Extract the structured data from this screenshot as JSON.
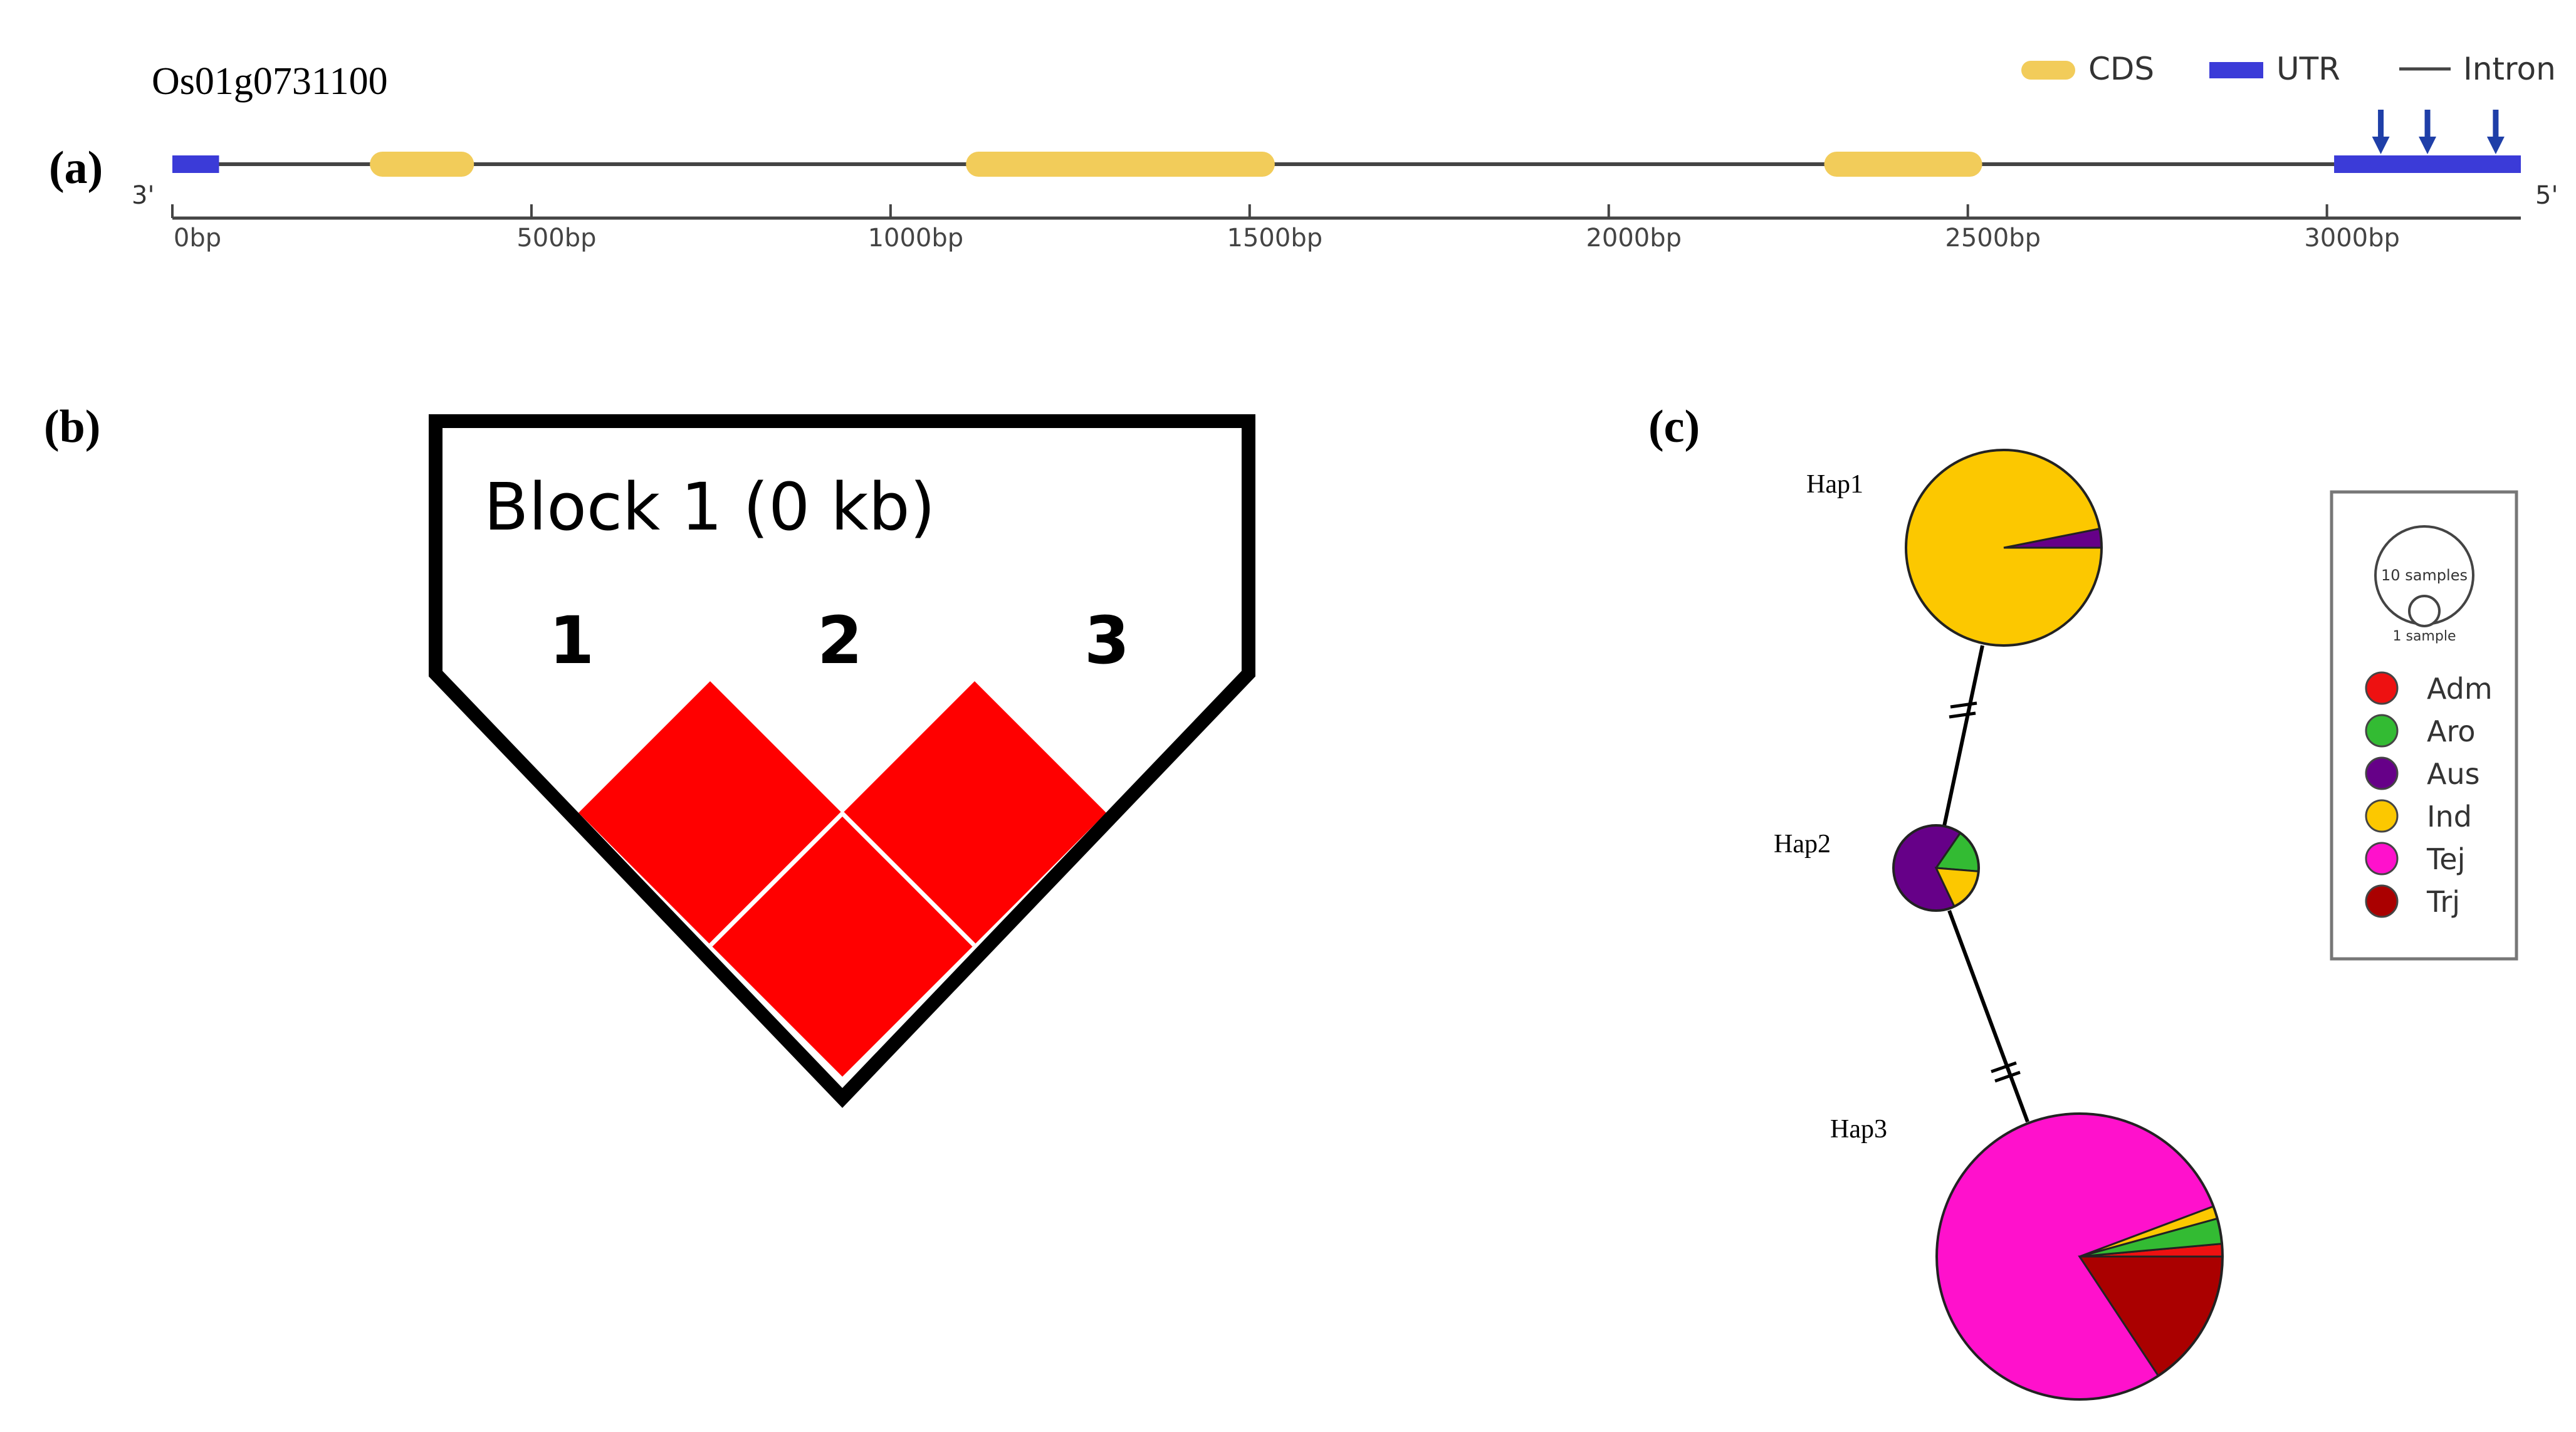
{
  "panel_a": {
    "label": "(a)",
    "gene_id": "Os01g0731100",
    "end_left": "3'",
    "end_right": "5'",
    "legend": {
      "cds": "CDS",
      "utr": "UTR",
      "intron": "Intron"
    },
    "colors": {
      "cds": "#f2cc5a",
      "utr": "#3b3bd8",
      "intron": "#444444",
      "arrow": "#1f3fa8"
    },
    "gene_length_bp": 3270,
    "axis": {
      "min": 0,
      "max": 3270,
      "ticks": [
        0,
        500,
        1000,
        1500,
        2000,
        2500,
        3000
      ],
      "tick_labels": [
        "0bp",
        "500bp",
        "1000bp",
        "1500bp",
        "2000bp",
        "2500bp",
        "3000bp"
      ]
    },
    "features": [
      {
        "type": "utr",
        "start": 0,
        "end": 65
      },
      {
        "type": "cds",
        "start": 275,
        "end": 420
      },
      {
        "type": "cds",
        "start": 1105,
        "end": 1535
      },
      {
        "type": "cds",
        "start": 2300,
        "end": 2520
      },
      {
        "type": "utr",
        "start": 3010,
        "end": 3270
      }
    ],
    "variant_positions_bp": [
      3075,
      3140,
      3235
    ]
  },
  "panel_b": {
    "label": "(b)",
    "block_title": "Block 1 (0 kb)",
    "markers": [
      "1",
      "2",
      "3"
    ],
    "ld_pairs": [
      {
        "pair": "1-2",
        "value": 100
      },
      {
        "pair": "2-3",
        "value": 100
      },
      {
        "pair": "1-3",
        "value": 100
      }
    ],
    "cell_color": "#ff0000"
  },
  "panel_c": {
    "label": "(c)",
    "group_colors": {
      "Adm": "#ee1111",
      "Aro": "#33bb33",
      "Aus": "#660088",
      "Ind": "#fcc800",
      "Tej": "#ff11cc",
      "Trj": "#aa0000"
    },
    "haplotypes": [
      {
        "name": "Hap1",
        "total": 32,
        "counts": {
          "Ind": 31,
          "Aus": 1
        }
      },
      {
        "name": "Hap2",
        "total": 6,
        "counts": {
          "Aus": 4,
          "Aro": 1,
          "Ind": 1
        }
      },
      {
        "name": "Hap3",
        "total": 70,
        "counts": {
          "Tej": 55,
          "Trj": 11,
          "Adm": 1,
          "Aro": 2,
          "Ind": 1
        }
      }
    ],
    "links": [
      {
        "from": "Hap1",
        "to": "Hap2",
        "mutations": 2
      },
      {
        "from": "Hap2",
        "to": "Hap3",
        "mutations": 2
      }
    ],
    "legend": {
      "size_large": "10 samples",
      "size_small": "1 sample",
      "groups": [
        "Adm",
        "Aro",
        "Aus",
        "Ind",
        "Tej",
        "Trj"
      ]
    }
  }
}
